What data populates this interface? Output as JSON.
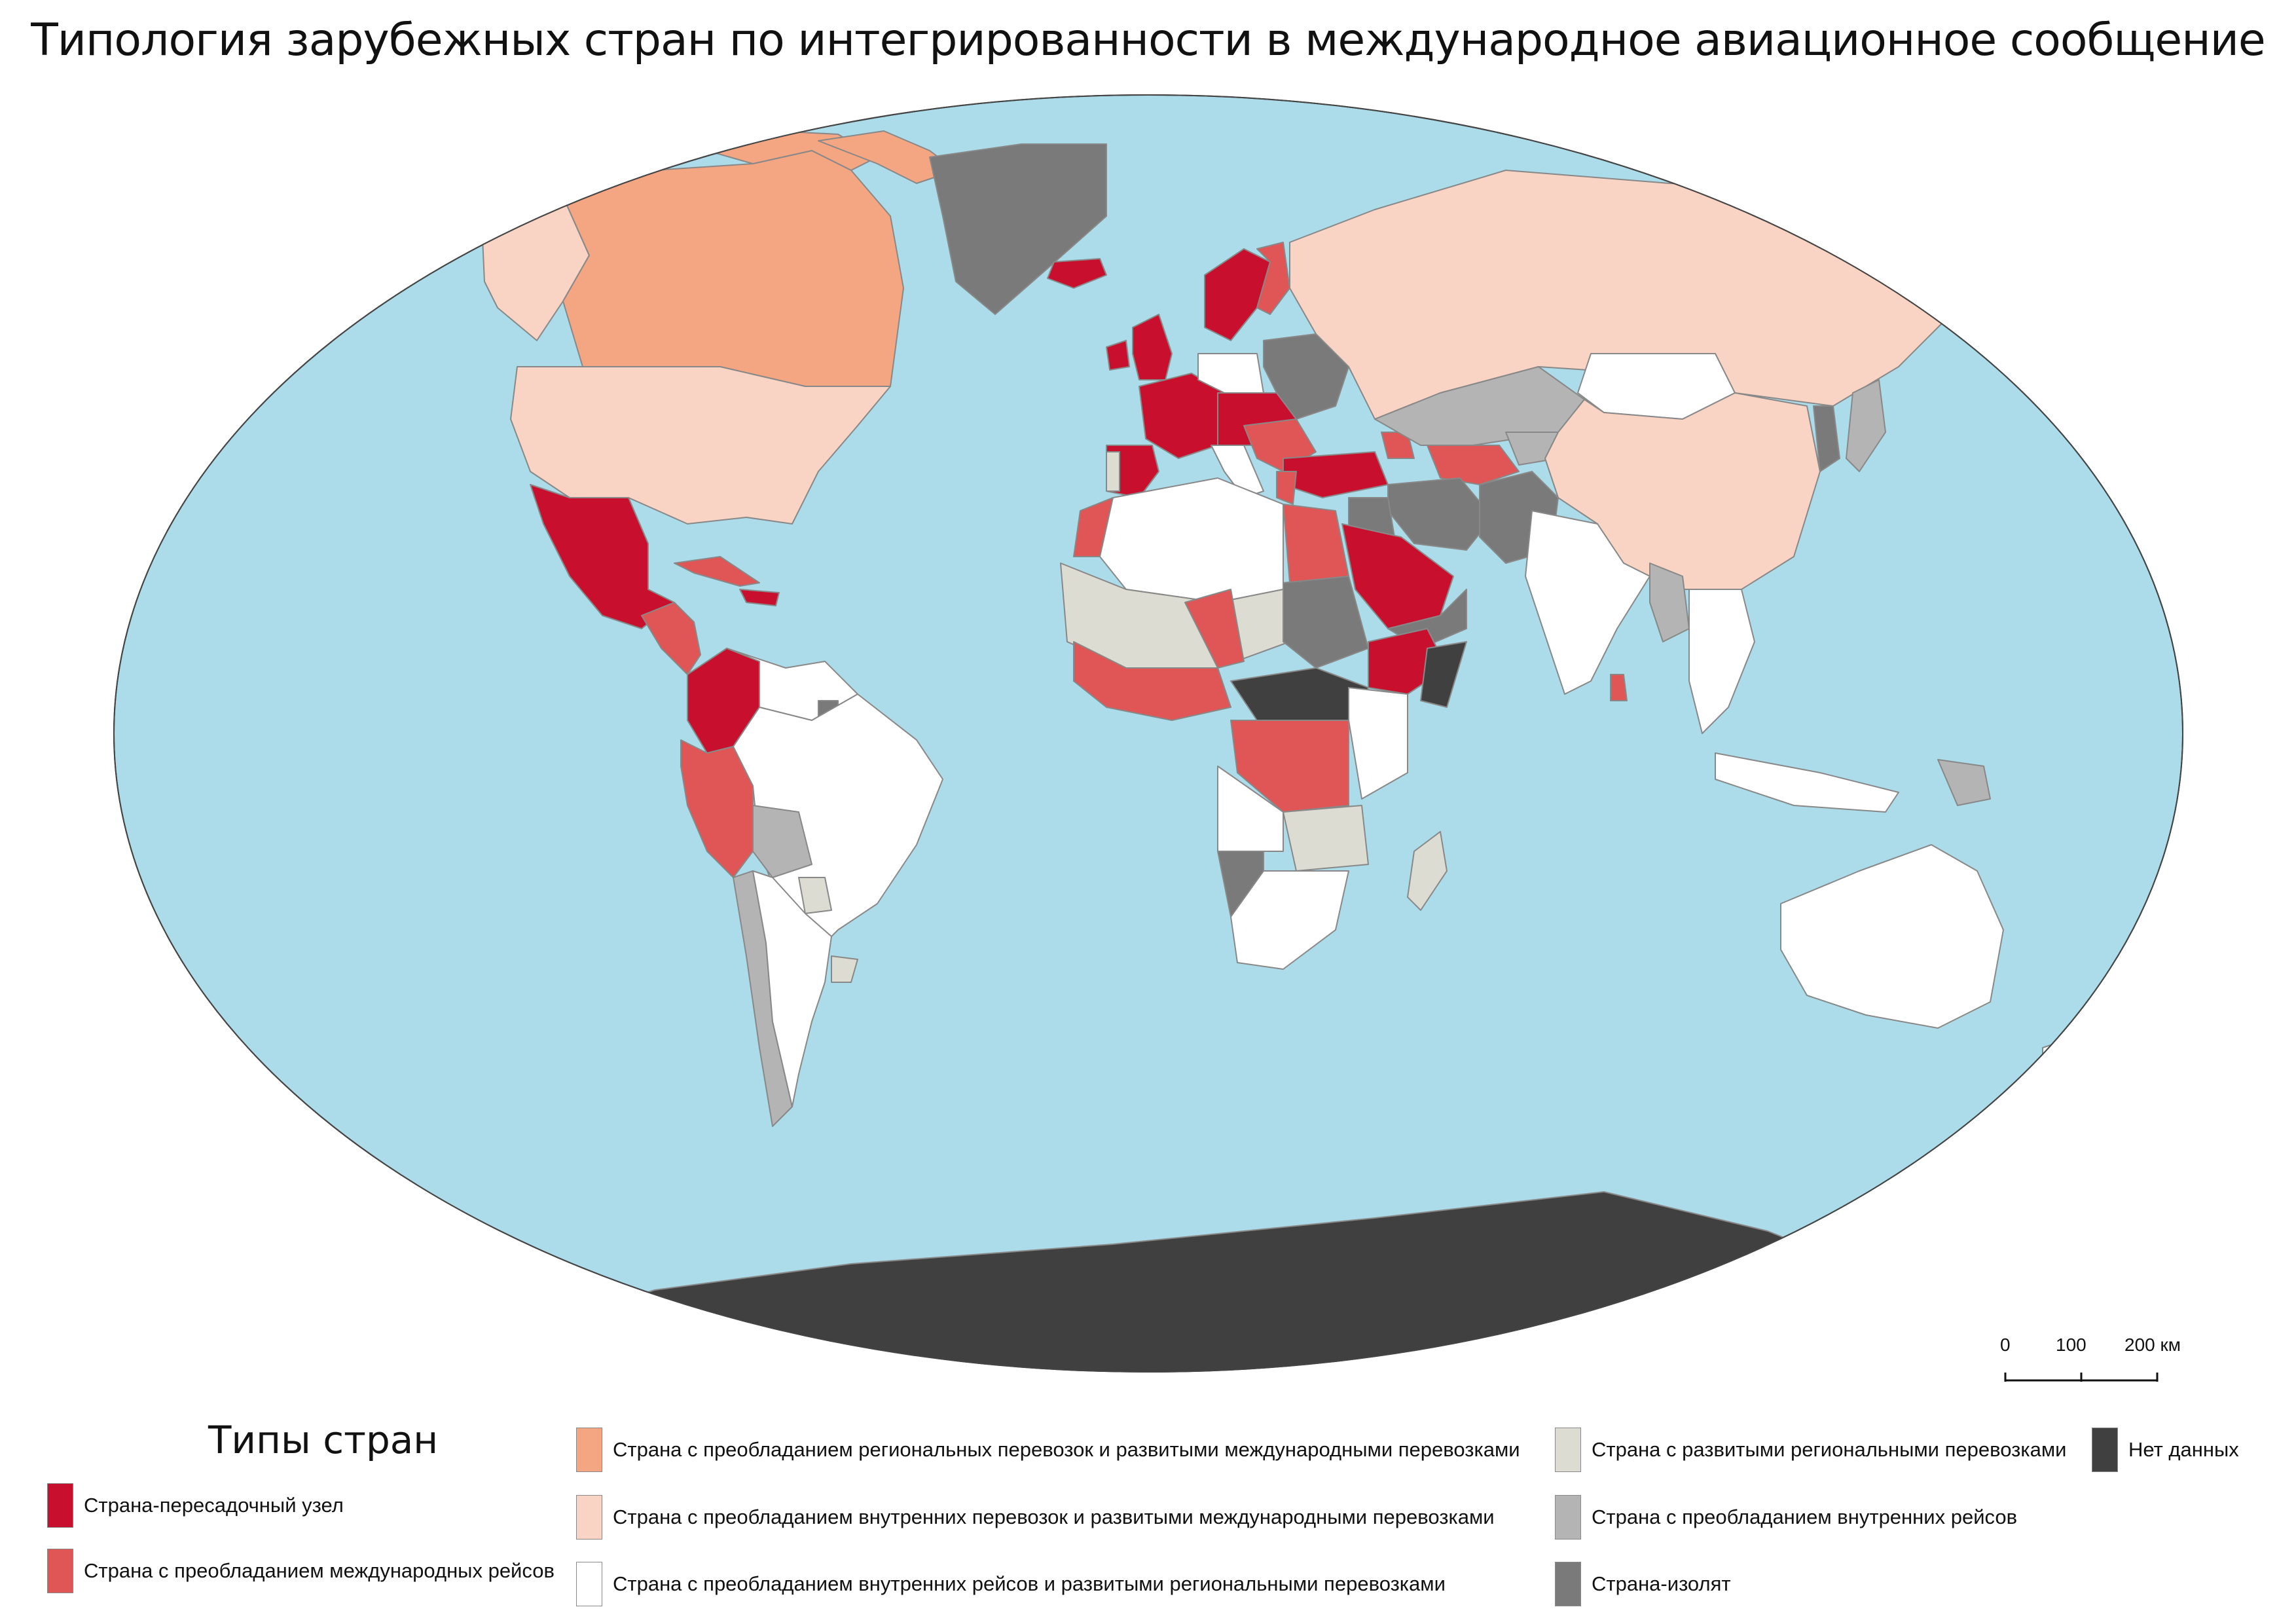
{
  "title": "Типология зарубежных стран по интегрированности в международное авиационное сообщение",
  "legend": {
    "heading": "Типы стран",
    "items": [
      {
        "label": "Страна-пересадочный узел",
        "color": "#c8102e"
      },
      {
        "label": "Страна с преобладанием международных рейсов",
        "color": "#e05555"
      },
      {
        "label": "Страна с преобладанием региональных перевозок и развитыми международными перевозками",
        "color": "#f4a582"
      },
      {
        "label": "Страна с преобладанием внутренних перевозок и развитыми международными перевозками",
        "color": "#f9d3c3"
      },
      {
        "label": "Страна с преобладанием внутренних рейсов и развитыми региональными перевозками",
        "color": "#ffffff"
      },
      {
        "label": "Страна с развитыми региональными перевозками",
        "color": "#dcdcd2"
      },
      {
        "label": "Страна с преобладанием внутренних рейсов",
        "color": "#b4b4b4"
      },
      {
        "label": "Страна-изолят",
        "color": "#7a7a7a"
      },
      {
        "label": "Нет данных",
        "color": "#404040"
      }
    ]
  },
  "scale_bar": {
    "ticks": [
      "0",
      "100",
      "200 км"
    ]
  },
  "colors": {
    "ocean": "#acdcea",
    "border": "#888888"
  }
}
